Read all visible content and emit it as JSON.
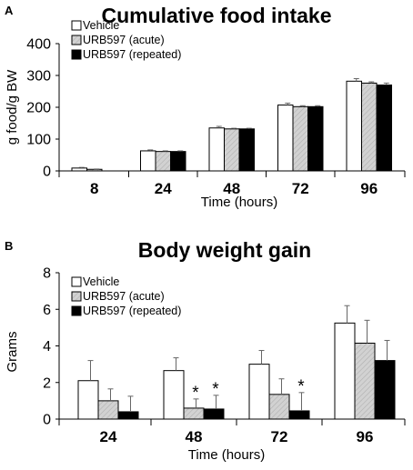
{
  "colors": {
    "vehicle": "#ffffff",
    "acute": "#cfcfcf",
    "repeated": "#000000",
    "outline": "#000000"
  },
  "chart_data": [
    {
      "panel": "A",
      "type": "bar",
      "title": "Cumulative food intake",
      "xlabel": "Time (hours)",
      "ylabel": "g food/g BW",
      "ylim": [
        0,
        400
      ],
      "yticks": [
        "0",
        "100",
        "200",
        "300",
        "400"
      ],
      "categories": [
        "8",
        "24",
        "48",
        "72",
        "96"
      ],
      "legend_position": "top-left",
      "series": [
        {
          "name": "Vehicle",
          "pattern": "vehicle",
          "values": [
            9,
            63,
            135,
            207,
            282
          ],
          "errors": [
            2,
            3,
            5,
            6,
            8
          ]
        },
        {
          "name": "URB597 (acute)",
          "pattern": "acute",
          "values": [
            5,
            61,
            132,
            202,
            276
          ],
          "errors": [
            1,
            2,
            2,
            3,
            4
          ]
        },
        {
          "name": "URB597 (repeated)",
          "pattern": "repeated",
          "values": [
            0,
            61,
            132,
            202,
            270
          ],
          "errors": [
            0,
            2,
            2,
            3,
            6
          ]
        }
      ]
    },
    {
      "panel": "B",
      "type": "bar",
      "title": "Body weight gain",
      "xlabel": "Time (hours)",
      "ylabel": "Grams",
      "ylim": [
        0,
        8
      ],
      "yticks": [
        "0",
        "2",
        "4",
        "6",
        "8"
      ],
      "categories": [
        "24",
        "48",
        "72",
        "96"
      ],
      "legend_position": "top-left",
      "series": [
        {
          "name": "Vehicle",
          "pattern": "vehicle",
          "values": [
            2.1,
            2.65,
            3.0,
            5.25
          ],
          "errors": [
            1.1,
            0.7,
            0.75,
            0.95
          ],
          "stars": [
            false,
            false,
            false,
            false
          ]
        },
        {
          "name": "URB597 (acute)",
          "pattern": "acute",
          "values": [
            1.0,
            0.6,
            1.35,
            4.15
          ],
          "errors": [
            0.65,
            0.5,
            0.85,
            1.25
          ],
          "stars": [
            false,
            true,
            false,
            false
          ]
        },
        {
          "name": "URB597 (repeated)",
          "pattern": "repeated",
          "values": [
            0.4,
            0.55,
            0.45,
            3.2
          ],
          "errors": [
            0.85,
            0.75,
            1.0,
            1.1
          ],
          "stars": [
            false,
            true,
            true,
            false
          ]
        }
      ],
      "annotation_symbol": "*"
    }
  ]
}
